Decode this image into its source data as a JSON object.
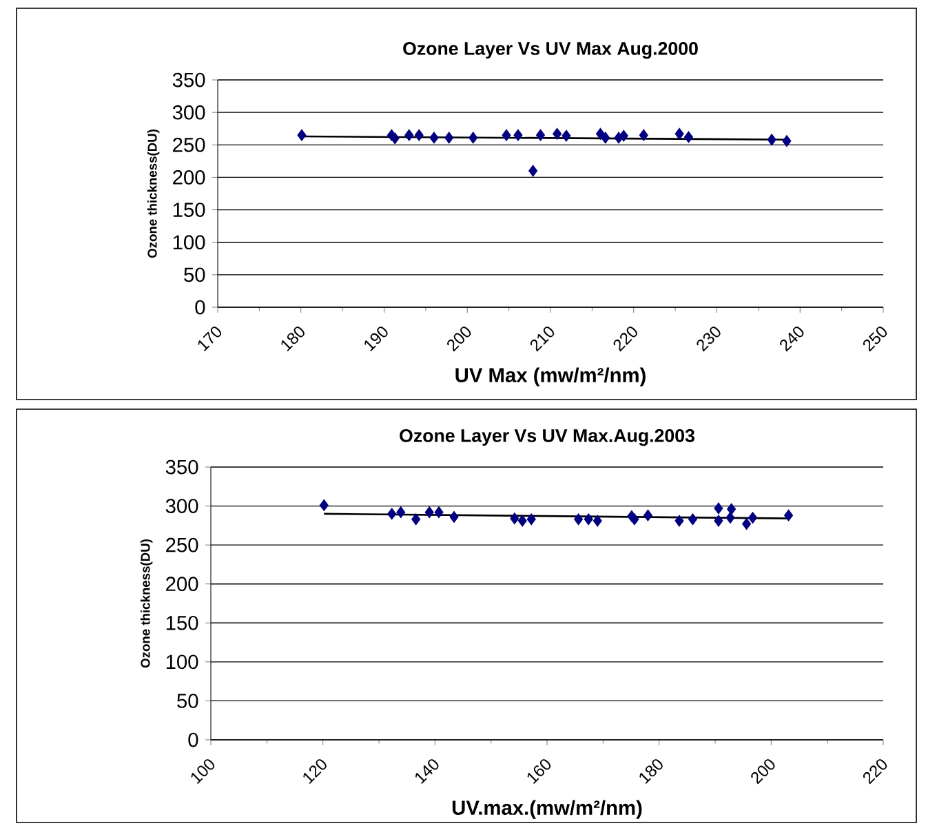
{
  "chart_data": [
    {
      "type": "scatter",
      "title": "Ozone Layer Vs UV Max Aug.2000",
      "xlabel": "UV Max (mw/m²/nm)",
      "ylabel": "Ozone thickness(DU)",
      "xlim": [
        170,
        250
      ],
      "xticks": [
        170,
        180,
        190,
        200,
        210,
        220,
        230,
        240,
        250
      ],
      "ylim": [
        0,
        350
      ],
      "yticks": [
        0,
        50,
        100,
        150,
        200,
        250,
        300,
        350
      ],
      "grid": "y",
      "series": [
        {
          "marker": "diamond",
          "color": "#000080",
          "x": [
            180.1,
            190.9,
            191.3,
            193,
            194.2,
            196,
            197.8,
            200.7,
            204.7,
            206.1,
            207.9,
            208.8,
            210.8,
            211.9,
            216,
            216.6,
            218.2,
            218.8,
            221.2,
            225.5,
            226.6,
            236.6,
            238.4
          ],
          "values": [
            265,
            265,
            260,
            265,
            265,
            261,
            261,
            261,
            265,
            265,
            210,
            265,
            267,
            264,
            267,
            261,
            261,
            264,
            265,
            267,
            262,
            258,
            256
          ]
        },
        {
          "type": "line",
          "marker": "none",
          "color": "#000000",
          "x": [
            180.1,
            238.4
          ],
          "values": [
            263,
            258
          ]
        }
      ]
    },
    {
      "type": "scatter",
      "title": "Ozone Layer Vs UV Max.Aug.2003",
      "xlabel": "UV.max.(mw/m²/nm)",
      "ylabel": "Ozone thickness(DU)",
      "xlim": [
        100,
        220
      ],
      "xticks": [
        100,
        120,
        140,
        160,
        180,
        200,
        220
      ],
      "ylim": [
        0,
        350
      ],
      "yticks": [
        0,
        50,
        100,
        150,
        200,
        250,
        300,
        350
      ],
      "grid": "y",
      "series": [
        {
          "marker": "diamond",
          "color": "#000080",
          "x": [
            120.2,
            132.3,
            133.9,
            136.6,
            139,
            140.7,
            143.4,
            154.2,
            155.6,
            157.2,
            165.6,
            167.4,
            169,
            175.1,
            175.6,
            178,
            183.6,
            186,
            190.6,
            190.6,
            192.9,
            192.7,
            195.6,
            196.7,
            203.1
          ],
          "values": [
            301,
            290,
            292,
            283,
            292,
            292,
            286,
            284,
            281,
            283,
            283,
            283,
            281,
            287,
            283,
            288,
            281,
            283,
            297,
            281,
            296,
            285,
            277,
            285,
            288
          ]
        },
        {
          "type": "line",
          "marker": "none",
          "color": "#000000",
          "x": [
            120.2,
            203.1
          ],
          "values": [
            290,
            284
          ]
        }
      ]
    }
  ]
}
